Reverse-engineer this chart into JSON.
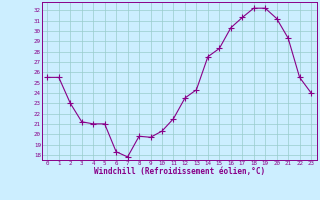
{
  "x": [
    0,
    1,
    2,
    3,
    4,
    5,
    6,
    7,
    8,
    9,
    10,
    11,
    12,
    13,
    14,
    15,
    16,
    17,
    18,
    19,
    20,
    21,
    22,
    23
  ],
  "y": [
    25.5,
    25.5,
    23.0,
    21.2,
    21.0,
    21.0,
    18.3,
    17.8,
    19.8,
    19.7,
    20.3,
    21.5,
    23.5,
    24.3,
    27.5,
    28.3,
    30.3,
    31.3,
    32.2,
    32.2,
    31.2,
    29.3,
    25.5,
    24.0
  ],
  "line_color": "#880088",
  "marker": "+",
  "marker_size": 4,
  "bg_color": "#cceeff",
  "grid_color": "#99cccc",
  "xlabel": "Windchill (Refroidissement éolien,°C)",
  "xlabel_color": "#880088",
  "xlim": [
    -0.5,
    23.5
  ],
  "ylim": [
    17.5,
    32.8
  ],
  "yticks": [
    18,
    19,
    20,
    21,
    22,
    23,
    24,
    25,
    26,
    27,
    28,
    29,
    30,
    31,
    32
  ],
  "xticks": [
    0,
    1,
    2,
    3,
    4,
    5,
    6,
    7,
    8,
    9,
    10,
    11,
    12,
    13,
    14,
    15,
    16,
    17,
    18,
    19,
    20,
    21,
    22,
    23
  ],
  "tick_color": "#880088",
  "spine_color": "#880088",
  "fig_bg": "#cceeff"
}
